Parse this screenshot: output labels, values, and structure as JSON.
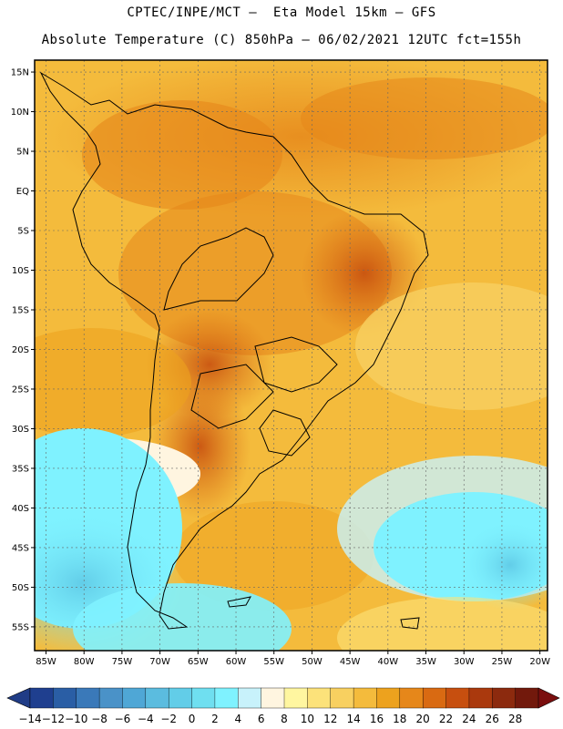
{
  "header": {
    "line1": "CPTEC/INPE/MCT –  Eta Model 15km – GFS",
    "line2": "Absolute Temperature (C) 850hPa – 06/02/2021 12UTC fct=155h"
  },
  "map": {
    "lat_labels": [
      "15N",
      "10N",
      "5N",
      "EQ",
      "5S",
      "10S",
      "15S",
      "20S",
      "25S",
      "30S",
      "35S",
      "40S",
      "45S",
      "50S",
      "55S"
    ],
    "lon_labels": [
      "85W",
      "80W",
      "75W",
      "70W",
      "65W",
      "60W",
      "55W",
      "50W",
      "45W",
      "40W",
      "35W",
      "30W",
      "25W",
      "20W"
    ],
    "lat_values": [
      15,
      10,
      5,
      0,
      -5,
      -10,
      -15,
      -20,
      -25,
      -30,
      -35,
      -40,
      -45,
      -50,
      -55
    ],
    "lon_values": [
      -85,
      -80,
      -75,
      -70,
      -65,
      -60,
      -55,
      -50,
      -45,
      -40,
      -35,
      -30,
      -25,
      -20
    ],
    "lat_range": [
      -58,
      16.5
    ],
    "lon_range": [
      -86.5,
      -19
    ]
  },
  "colorbar": {
    "labels": [
      "-14",
      "-12",
      "-10",
      "-8",
      "-6",
      "-4",
      "-2",
      "0",
      "2",
      "4",
      "6",
      "8",
      "10",
      "12",
      "14",
      "16",
      "18",
      "20",
      "22",
      "24",
      "26",
      "28"
    ],
    "colors": [
      "#1f3f8f",
      "#2a5ea5",
      "#3a79b9",
      "#4a92c8",
      "#4fa7d6",
      "#5bbcdf",
      "#62cde8",
      "#6fdff0",
      "#7ff2ff",
      "#c8f2fb",
      "#fff5e0",
      "#fff6a0",
      "#fce27a",
      "#f8d060",
      "#f4bb3c",
      "#eda21e",
      "#e6871a",
      "#d96a12",
      "#c74f0f",
      "#aa390d",
      "#8c2a0e",
      "#72190c"
    ],
    "under_color": "#203c86",
    "over_color": "#7a0e0e"
  }
}
